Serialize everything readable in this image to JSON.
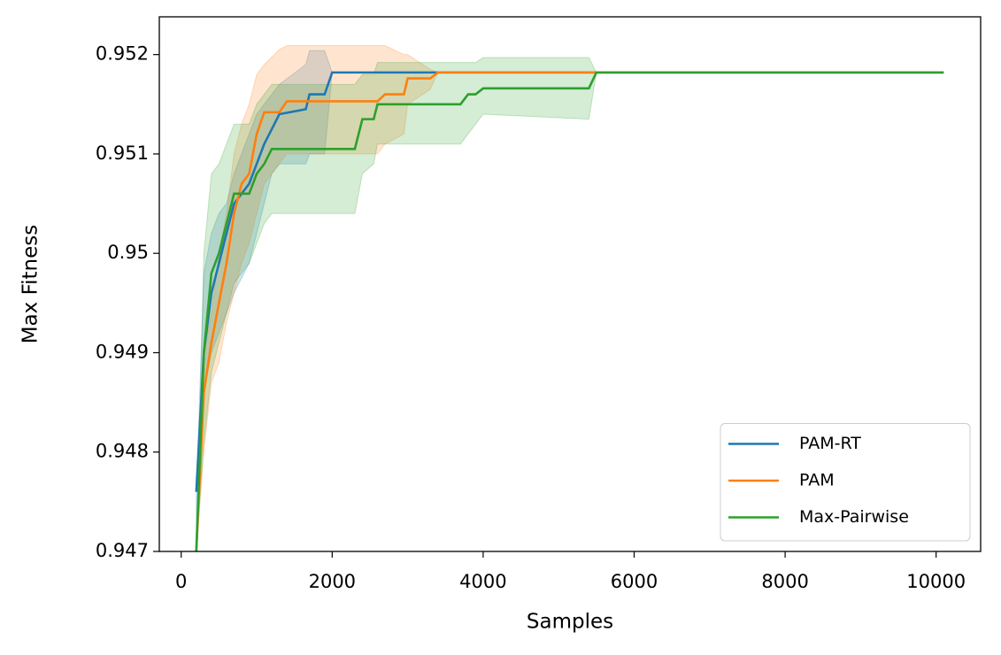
{
  "chart_data": {
    "type": "line",
    "xlabel": "Samples",
    "ylabel": "Max Fitness",
    "xlim": [
      -290,
      10590
    ],
    "ylim": [
      0.947,
      0.95238
    ],
    "xticks": [
      0,
      2000,
      4000,
      6000,
      8000,
      10000
    ],
    "yticks": [
      0.947,
      0.948,
      0.949,
      0.95,
      0.951,
      0.952
    ],
    "legend": "lower right",
    "series": [
      {
        "name": "PAM-RT",
        "color": "#1f77b4",
        "x": [
          200,
          300,
          400,
          500,
          600,
          700,
          900,
          1000,
          1100,
          1200,
          1300,
          1650,
          1700,
          1900,
          2000,
          10100
        ],
        "values": [
          0.9476,
          0.949,
          0.9496,
          0.9499,
          0.9502,
          0.9505,
          0.9507,
          0.9509,
          0.9511,
          0.95125,
          0.9514,
          0.95145,
          0.9516,
          0.9516,
          0.95182,
          0.95182
        ],
        "upper": [
          0.9476,
          0.9498,
          0.9502,
          0.9504,
          0.9505,
          0.9508,
          0.9512,
          0.9514,
          0.9515,
          0.9516,
          0.9517,
          0.9519,
          0.95204,
          0.95204,
          0.95182,
          0.95182
        ],
        "lower": [
          0.947,
          0.9486,
          0.949,
          0.9492,
          0.9494,
          0.9496,
          0.9499,
          0.9502,
          0.9505,
          0.9508,
          0.9509,
          0.9509,
          0.951,
          0.951,
          0.95182,
          0.95182
        ]
      },
      {
        "name": "PAM",
        "color": "#ff7f0e",
        "x": [
          200,
          300,
          400,
          500,
          600,
          700,
          800,
          900,
          1000,
          1100,
          1300,
          1400,
          2600,
          2700,
          2950,
          3000,
          3300,
          3400,
          10100
        ],
        "values": [
          0.947,
          0.9486,
          0.9491,
          0.9495,
          0.9499,
          0.9504,
          0.9507,
          0.9508,
          0.9512,
          0.95142,
          0.95142,
          0.95153,
          0.95153,
          0.9516,
          0.9516,
          0.95176,
          0.95176,
          0.95182,
          0.95182
        ],
        "upper": [
          0.947,
          0.949,
          0.9494,
          0.95,
          0.9504,
          0.951,
          0.9513,
          0.9515,
          0.9518,
          0.9519,
          0.95205,
          0.95209,
          0.95209,
          0.95209,
          0.952,
          0.952,
          0.95185,
          0.95182,
          0.95182
        ],
        "lower": [
          0.947,
          0.948,
          0.9487,
          0.9489,
          0.9493,
          0.9496,
          0.9499,
          0.9501,
          0.9504,
          0.9507,
          0.9509,
          0.951,
          0.951,
          0.9511,
          0.9512,
          0.9515,
          0.95165,
          0.95182,
          0.95182
        ]
      },
      {
        "name": "Max-Pairwise",
        "color": "#2ca02c",
        "x": [
          200,
          300,
          400,
          500,
          600,
          700,
          900,
          1000,
          1100,
          1200,
          2300,
          2400,
          2550,
          2600,
          3700,
          3800,
          3900,
          4000,
          5400,
          5500,
          10100
        ],
        "values": [
          0.947,
          0.949,
          0.9498,
          0.95,
          0.9503,
          0.9506,
          0.9506,
          0.9508,
          0.9509,
          0.95105,
          0.95105,
          0.95135,
          0.95135,
          0.9515,
          0.9515,
          0.9516,
          0.9516,
          0.95166,
          0.95166,
          0.95182,
          0.95182
        ],
        "upper": [
          0.947,
          0.95,
          0.9508,
          0.9509,
          0.9511,
          0.9513,
          0.9513,
          0.9515,
          0.9516,
          0.9517,
          0.9517,
          0.9518,
          0.9518,
          0.95192,
          0.95192,
          0.95192,
          0.95192,
          0.95197,
          0.95197,
          0.95182,
          0.95182
        ],
        "lower": [
          0.947,
          0.9481,
          0.9488,
          0.9491,
          0.9494,
          0.9497,
          0.9499,
          0.9501,
          0.9503,
          0.9504,
          0.9504,
          0.9508,
          0.9509,
          0.9511,
          0.9511,
          0.9512,
          0.9513,
          0.9514,
          0.95135,
          0.95182,
          0.95182
        ]
      }
    ]
  }
}
